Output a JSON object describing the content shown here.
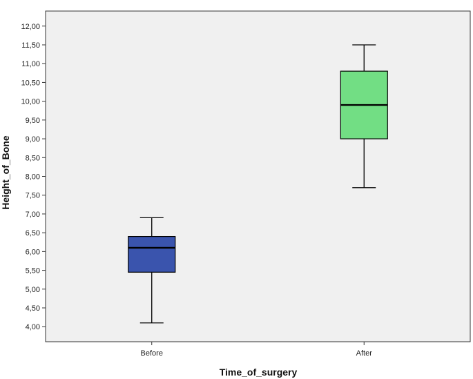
{
  "chart_data": {
    "type": "boxplot",
    "xlabel": "Time_of_surgery",
    "ylabel": "Height_of_Bone",
    "ylim": [
      3.6,
      12.4
    ],
    "y_ticks": [
      "4,00",
      "4,50",
      "5,00",
      "5,50",
      "6,00",
      "6,50",
      "7,00",
      "7,50",
      "8,00",
      "8,50",
      "9,00",
      "9,50",
      "10,00",
      "10,50",
      "11,00",
      "11,50",
      "12,00"
    ],
    "y_tick_values": [
      4.0,
      4.5,
      5.0,
      5.5,
      6.0,
      6.5,
      7.0,
      7.5,
      8.0,
      8.5,
      9.0,
      9.5,
      10.0,
      10.5,
      11.0,
      11.5,
      12.0
    ],
    "categories": [
      "Before",
      "After"
    ],
    "boxes": [
      {
        "category": "Before",
        "min": 4.1,
        "q1": 5.45,
        "median": 6.1,
        "q3": 6.4,
        "max": 6.9,
        "color": "#3a54ad"
      },
      {
        "category": "After",
        "min": 7.7,
        "q1": 9.0,
        "median": 9.9,
        "q3": 10.8,
        "max": 11.5,
        "color": "#72de84"
      }
    ],
    "grid": false,
    "plot_background": "#f0f0f0"
  }
}
